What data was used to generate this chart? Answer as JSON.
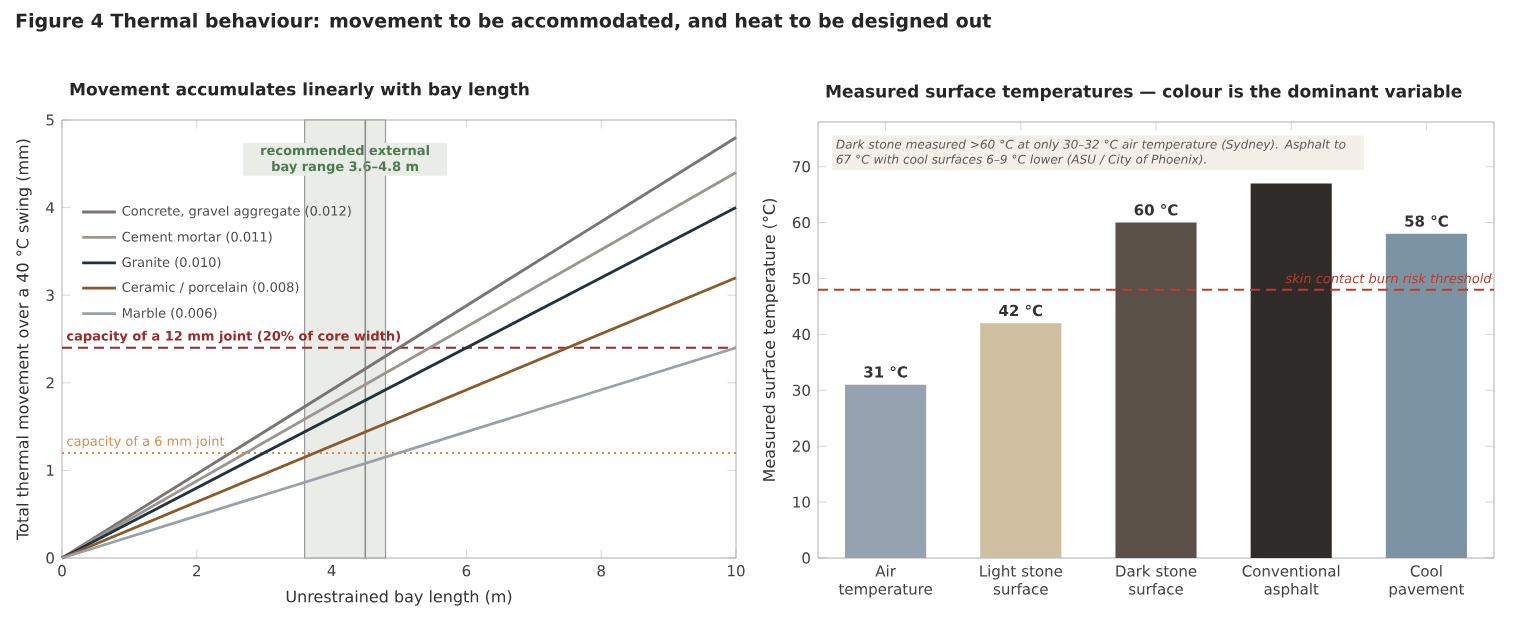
{
  "chart_data": [
    {
      "type": "other",
      "title": "Figure 4  Thermal behaviour: movement to be accommodated, and heat to be designed out"
    },
    {
      "type": "line",
      "title": "Movement accumulates linearly with bay length",
      "xlabel": "Unrestrained bay length (m)",
      "ylabel": "Total thermal movement over a 40 °C swing (mm)",
      "x": [
        0,
        10
      ],
      "series": [
        {
          "name": "Concrete, gravel aggregate (0.012)",
          "color": "#7a7572",
          "values": [
            0,
            4.8
          ]
        },
        {
          "name": "Cement mortar (0.011)",
          "color": "#9c9690",
          "values": [
            0,
            4.4
          ]
        },
        {
          "name": "Granite (0.010)",
          "color": "#1f3340",
          "values": [
            0,
            4.0
          ]
        },
        {
          "name": "Ceramic / porcelain (0.008)",
          "color": "#8a5a2b",
          "values": [
            0,
            3.2
          ]
        },
        {
          "name": "Marble (0.006)",
          "color": "#9aa0a8",
          "values": [
            0,
            2.4
          ]
        }
      ],
      "xlim": [
        0,
        10
      ],
      "ylim": [
        0,
        5
      ],
      "xticks": [
        0,
        2,
        4,
        6,
        8,
        10
      ],
      "yticks": [
        0,
        1,
        2,
        3,
        4,
        5
      ],
      "legend": "top left",
      "bands": [
        {
          "axis": "x",
          "from": 3.6,
          "to": 4.8,
          "label": "recommended external bay range 3.6–4.8 m",
          "color": "#e9ece7"
        }
      ],
      "ref_lines": [
        {
          "axis": "x",
          "value": 4.5,
          "color": "#8a8f8a",
          "line_style": "solid"
        },
        {
          "axis": "y",
          "value": 2.4,
          "label": "capacity of a 12 mm joint (20% of core width)",
          "color": "#9b2a2a",
          "line_style": "dashed"
        },
        {
          "axis": "y",
          "value": 1.2,
          "label": "capacity of a 6 mm joint",
          "color": "#d98a4a",
          "line_style": "dotted"
        }
      ]
    },
    {
      "type": "bar",
      "title": "Measured surface temperatures — colour is the dominant variable",
      "ylabel": "Measured surface temperature (°C)",
      "categories": [
        "Air temperature",
        "Light stone surface",
        "Dark stone surface",
        "Conventional asphalt",
        "Cool pavement"
      ],
      "values": [
        31,
        42,
        60,
        67,
        58
      ],
      "colors": [
        "#95a3b0",
        "#cdbf9f",
        "#5b5048",
        "#2f2b28",
        "#7c93a3"
      ],
      "value_labels": [
        "31 °C",
        "42 °C",
        "60 °C",
        null,
        "58 °C"
      ],
      "ylim": [
        0,
        78
      ],
      "yticks": [
        0,
        10,
        20,
        30,
        40,
        50,
        60,
        70
      ],
      "ref_lines": [
        {
          "axis": "y",
          "value": 48,
          "label": "skin contact burn risk threshold",
          "color": "#c0392b",
          "line_style": "dashed"
        }
      ],
      "annotations": [
        "Dark stone measured >60 °C at only 30–32 °C air temperature (Sydney). Asphalt to 67 °C with cool surfaces 6–9 °C lower (ASU / City of Phoenix)."
      ]
    }
  ]
}
